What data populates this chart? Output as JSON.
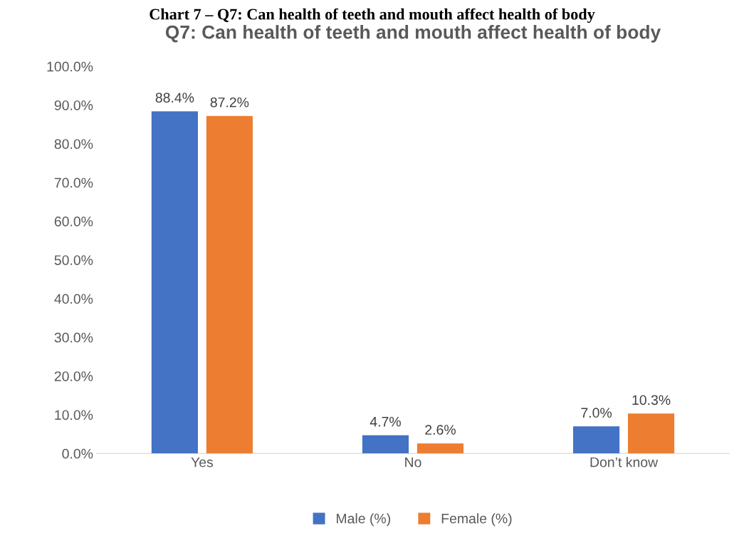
{
  "chart_data": {
    "type": "bar",
    "title": "Q7: Can health of teeth and mouth affect health of body",
    "annotations": [
      "Chart 7 – Q7: Can health of teeth and mouth affect health of body"
    ],
    "categories": [
      "Yes",
      "No",
      "Don’t know"
    ],
    "series": [
      {
        "name": "Male (%)",
        "color": "#4472c4",
        "values": [
          88.4,
          4.7,
          7.0
        ],
        "value_labels": [
          "88.4%",
          "4.7%",
          "7.0%"
        ]
      },
      {
        "name": "Female (%)",
        "color": "#ed7d31",
        "values": [
          87.2,
          2.6,
          10.3
        ],
        "value_labels": [
          "87.2%",
          "2.6%",
          "10.3%"
        ]
      }
    ],
    "ylim": [
      0,
      100
    ],
    "yticks": [
      {
        "value": 0,
        "label": "0.0%"
      },
      {
        "value": 10,
        "label": "10.0%"
      },
      {
        "value": 20,
        "label": "20.0%"
      },
      {
        "value": 30,
        "label": "30.0%"
      },
      {
        "value": 40,
        "label": "40.0%"
      },
      {
        "value": 50,
        "label": "50.0%"
      },
      {
        "value": 60,
        "label": "60.0%"
      },
      {
        "value": 70,
        "label": "70.0%"
      },
      {
        "value": 80,
        "label": "80.0%"
      },
      {
        "value": 90,
        "label": "90.0%"
      },
      {
        "value": 100,
        "label": "100.0%"
      }
    ],
    "grid": false,
    "legend": "bottom"
  }
}
